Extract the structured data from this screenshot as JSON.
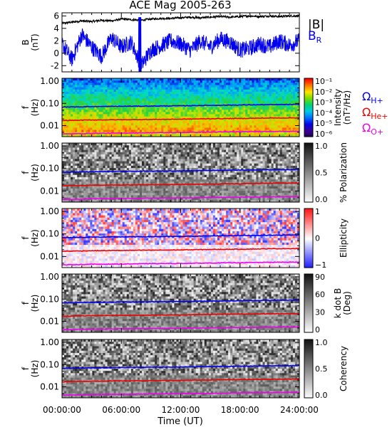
{
  "chart_data": {
    "type": "multi-panel",
    "title": "ACE Mag 2005-263",
    "xlabel": "Time (UT)",
    "x_ticks": [
      "00:00:00",
      "06:00:00",
      "12:00:00",
      "18:00:00",
      "24:00:00"
    ],
    "xlim": [
      0,
      24
    ],
    "panels": [
      {
        "type": "line",
        "ylabel": [
          "B",
          "(nT)"
        ],
        "ylim": [
          -3,
          6.5
        ],
        "y_ticks": [
          "-2",
          "0",
          "2",
          "4",
          "6"
        ],
        "series": [
          {
            "name": "|B|",
            "color": "#000000",
            "x": [
              0,
              1,
              2,
              3,
              4,
              5,
              6,
              7,
              8,
              9,
              10,
              11,
              12,
              13,
              14,
              15,
              16,
              17,
              18,
              19,
              20,
              21,
              22,
              23,
              24
            ],
            "values": [
              4.8,
              5.0,
              5.2,
              5.1,
              5.3,
              5.2,
              5.5,
              5.4,
              5.3,
              5.5,
              5.6,
              5.6,
              5.7,
              5.8,
              5.7,
              5.8,
              5.9,
              5.8,
              5.9,
              6.0,
              5.9,
              6.0,
              5.9,
              6.0,
              6.0
            ]
          },
          {
            "name": "B",
            "sub": "R",
            "color": "#0000ee",
            "x": [
              0,
              1,
              2,
              3,
              4,
              5,
              6,
              7,
              8,
              9,
              10,
              11,
              12,
              13,
              14,
              15,
              16,
              17,
              18,
              19,
              20,
              21,
              22,
              23,
              24
            ],
            "values": [
              1.5,
              -1.0,
              3.0,
              1.0,
              -0.5,
              2.5,
              1.0,
              1.8,
              -2.0,
              0.5,
              1.2,
              2.0,
              1.5,
              0.5,
              2.0,
              1.0,
              2.3,
              1.8,
              0.5,
              0.8,
              1.5,
              1.0,
              2.0,
              1.3,
              2.0
            ]
          }
        ]
      },
      {
        "type": "heatmap",
        "ylabel": [
          "f",
          "(Hz)"
        ],
        "y_scale": "log",
        "y_ticks": [
          "1.00",
          "0.10",
          "0.01"
        ],
        "colorbar": {
          "label": [
            "Intensity",
            "(nT²/Hz)"
          ],
          "ticks": [
            "10⁻¹",
            "10⁻²",
            "10⁻³",
            "10⁻⁴",
            "10⁻⁵",
            "10⁻⁶"
          ],
          "scheme": "rainbow"
        },
        "lines": [
          "H+",
          "He+",
          "O+"
        ]
      },
      {
        "type": "heatmap",
        "ylabel": [
          "f",
          "(Hz)"
        ],
        "y_scale": "log",
        "y_ticks": [
          "1.00",
          "0.10",
          "0.01"
        ],
        "colorbar": {
          "label": [
            "% Polarization"
          ],
          "ticks": [
            "1.0",
            "0.5",
            "0.0"
          ],
          "scheme": "gray"
        },
        "lines": [
          "H+",
          "He+",
          "O+"
        ]
      },
      {
        "type": "heatmap",
        "ylabel": [
          "f",
          "(Hz)"
        ],
        "y_scale": "log",
        "y_ticks": [
          "1.00",
          "0.10",
          "0.01"
        ],
        "colorbar": {
          "label": [
            "Ellipticity"
          ],
          "ticks": [
            "1",
            "0",
            "−1"
          ],
          "scheme": "bwr"
        },
        "lines": [
          "H+",
          "He+",
          "O+"
        ]
      },
      {
        "type": "heatmap",
        "ylabel": [
          "f",
          "(Hz)"
        ],
        "y_scale": "log",
        "y_ticks": [
          "1.00",
          "0.10",
          "0.01"
        ],
        "colorbar": {
          "label": [
            "k dot B",
            "(Deg)"
          ],
          "ticks": [
            "90",
            "60",
            "30",
            "0"
          ],
          "scheme": "gray"
        },
        "lines": [
          "H+",
          "He+",
          "O+"
        ]
      },
      {
        "type": "heatmap",
        "ylabel": [
          "f",
          "(Hz)"
        ],
        "y_scale": "log",
        "y_ticks": [
          "1.00",
          "0.10",
          "0.01"
        ],
        "colorbar": {
          "label": [
            "Coherency"
          ],
          "ticks": [
            "1.0",
            "0.5",
            "0.0"
          ],
          "scheme": "gray"
        },
        "lines": [
          "H+",
          "He+",
          "O+"
        ]
      }
    ],
    "gyro_lines": [
      {
        "name": "Ω",
        "sub": "H+",
        "color": "#0000ee",
        "values_hz": [
          0.068,
          0.072,
          0.074,
          0.076,
          0.078,
          0.082,
          0.085,
          0.088,
          0.09
        ]
      },
      {
        "name": "Ω",
        "sub": "He+",
        "color": "#ee0000",
        "values_hz": [
          0.017,
          0.018,
          0.0185,
          0.019,
          0.0195,
          0.0205,
          0.021,
          0.022,
          0.0225
        ]
      },
      {
        "name": "Ω",
        "sub": "O+",
        "color": "#ee00ee",
        "values_hz": [
          0.0042,
          0.0045,
          0.0046,
          0.0048,
          0.0049,
          0.0051,
          0.0053,
          0.0055,
          0.0056
        ]
      }
    ]
  }
}
